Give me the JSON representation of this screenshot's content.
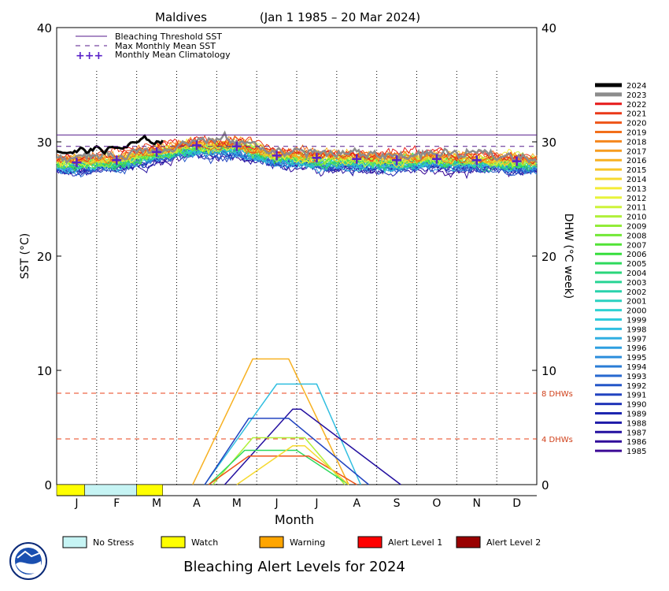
{
  "chart_data": {
    "type": "line",
    "title_location": "Maldives",
    "title_range": "(Jan 1 1985 – 20 Mar 2024)",
    "xlabel": "Month",
    "ylabel_left": "SST (°C)",
    "ylabel_right": "DHW (°C week)",
    "ylim": [
      0,
      40
    ],
    "yticks": [
      0,
      10,
      20,
      30,
      40
    ],
    "months": [
      "J",
      "F",
      "M",
      "A",
      "M",
      "J",
      "J",
      "A",
      "S",
      "O",
      "N",
      "D"
    ],
    "bleaching_threshold_sst": 30.6,
    "max_monthly_mean_sst": 29.6,
    "dhw_thresholds": [
      {
        "value": 8,
        "label": "8 DHWs"
      },
      {
        "value": 4,
        "label": "4 DHWs"
      }
    ],
    "legend_lines": [
      {
        "label": "Bleaching Threshold SST",
        "style": "solid",
        "color": "#551a8b"
      },
      {
        "label": "Max Monthly Mean SST",
        "style": "dashed",
        "color": "#551a8b"
      },
      {
        "label": "Monthly Mean Climatology",
        "style": "cross",
        "color": "#5a22c8"
      }
    ],
    "climatology": {
      "x": [
        1,
        2,
        3,
        4,
        5,
        6,
        7,
        8,
        9,
        10,
        11,
        12
      ],
      "y": [
        28.2,
        28.4,
        29.1,
        29.7,
        29.6,
        28.8,
        28.6,
        28.5,
        28.4,
        28.5,
        28.4,
        28.3
      ]
    },
    "year_legend": [
      {
        "year": "2024",
        "color": "#000000"
      },
      {
        "year": "2023",
        "color": "#8c8c8c"
      },
      {
        "year": "2022",
        "color": "#e61919"
      },
      {
        "year": "2021",
        "color": "#ea3818"
      },
      {
        "year": "2020",
        "color": "#ee5418"
      },
      {
        "year": "2019",
        "color": "#f26f1a"
      },
      {
        "year": "2018",
        "color": "#f5861c"
      },
      {
        "year": "2017",
        "color": "#f69c1e"
      },
      {
        "year": "2016",
        "color": "#f7b122"
      },
      {
        "year": "2015",
        "color": "#f8c52a"
      },
      {
        "year": "2014",
        "color": "#f6d930"
      },
      {
        "year": "2013",
        "color": "#f4ec36"
      },
      {
        "year": "2012",
        "color": "#e8f43a"
      },
      {
        "year": "2011",
        "color": "#cdf33a"
      },
      {
        "year": "2010",
        "color": "#b0f03a"
      },
      {
        "year": "2009",
        "color": "#92ec38"
      },
      {
        "year": "2008",
        "color": "#72e836"
      },
      {
        "year": "2007",
        "color": "#52e336"
      },
      {
        "year": "2006",
        "color": "#36de3c"
      },
      {
        "year": "2005",
        "color": "#2ed95c"
      },
      {
        "year": "2004",
        "color": "#2ad67a"
      },
      {
        "year": "2003",
        "color": "#28d494"
      },
      {
        "year": "2002",
        "color": "#28d2ab"
      },
      {
        "year": "2001",
        "color": "#2ad1c0"
      },
      {
        "year": "2000",
        "color": "#2ed2d2"
      },
      {
        "year": "1999",
        "color": "#30cbdc"
      },
      {
        "year": "1998",
        "color": "#30bee0"
      },
      {
        "year": "1997",
        "color": "#30afe2"
      },
      {
        "year": "1996",
        "color": "#2e9fe0"
      },
      {
        "year": "1995",
        "color": "#2c8edc"
      },
      {
        "year": "1994",
        "color": "#2a7cd6"
      },
      {
        "year": "1993",
        "color": "#2769d0"
      },
      {
        "year": "1992",
        "color": "#2456c8"
      },
      {
        "year": "1991",
        "color": "#2244c0"
      },
      {
        "year": "1990",
        "color": "#2034b8"
      },
      {
        "year": "1989",
        "color": "#1e26b0"
      },
      {
        "year": "1988",
        "color": "#1e1aa8"
      },
      {
        "year": "1987",
        "color": "#2410a0"
      },
      {
        "year": "1986",
        "color": "#300c9a"
      },
      {
        "year": "1985",
        "color": "#3c0a96"
      }
    ],
    "dhw_series": [
      {
        "name": "2016",
        "peak": 11.0,
        "onset": 3.4,
        "peak_start": 4.9,
        "peak_end": 5.8,
        "end": 7.3
      },
      {
        "name": "1998",
        "peak": 8.8,
        "onset": 3.7,
        "peak_start": 5.5,
        "peak_end": 6.5,
        "end": 7.6
      },
      {
        "name": "1987",
        "peak": 6.6,
        "onset": 4.2,
        "peak_start": 5.9,
        "peak_end": 6.1,
        "end": 8.6
      },
      {
        "name": "1991",
        "peak": 5.8,
        "onset": 3.7,
        "peak_start": 4.8,
        "peak_end": 5.8,
        "end": 7.8
      },
      {
        "name": "2010",
        "peak": 4.1,
        "onset": 3.9,
        "peak_start": 4.9,
        "peak_end": 6.2,
        "end": 7.2
      },
      {
        "name": "2005",
        "peak": 3.0,
        "onset": 3.8,
        "peak_start": 4.7,
        "peak_end": 6.0,
        "end": 7.3
      },
      {
        "name": "2020",
        "peak": 2.5,
        "onset": 3.8,
        "peak_start": 4.8,
        "peak_end": 6.3,
        "end": 7.5
      },
      {
        "name": "2014",
        "peak": 3.4,
        "onset": 4.5,
        "peak_start": 5.9,
        "peak_end": 6.2,
        "end": 7.3
      }
    ],
    "alert_legend": [
      {
        "label": "No Stress",
        "color": "#c6f4f4"
      },
      {
        "label": "Watch",
        "color": "#ffff00"
      },
      {
        "label": "Warning",
        "color": "#ffa500"
      },
      {
        "label": "Alert Level 1",
        "color": "#ff0000"
      },
      {
        "label": "Alert Level 2",
        "color": "#990000"
      }
    ],
    "alert_strip_2024": [
      {
        "from": 0,
        "to": 0.7,
        "level": "Watch"
      },
      {
        "from": 0.7,
        "to": 2.0,
        "level": "No Stress"
      },
      {
        "from": 2.0,
        "to": 2.65,
        "level": "Watch"
      }
    ],
    "footer_title": "Bleaching Alert Levels for 2024"
  }
}
